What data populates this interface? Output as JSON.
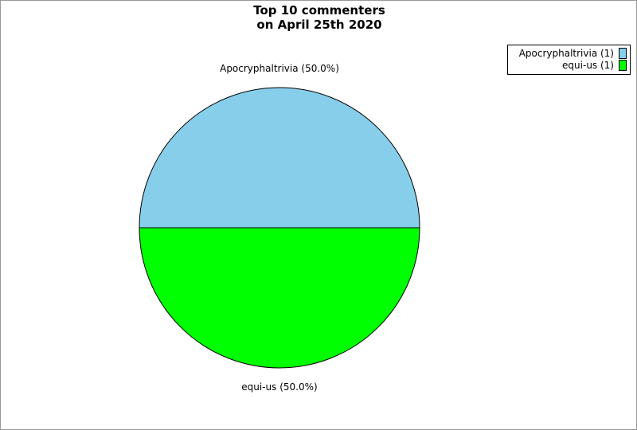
{
  "chart_data": {
    "type": "pie",
    "title_lines": [
      "Top 10 commenters",
      "on April 25th 2020"
    ],
    "slices": [
      {
        "name": "Apocryphaltrivia",
        "value": 1,
        "percent_label": "Apocryphaltrivia (50.0%)",
        "legend_label": "Apocryphaltrivia (1)",
        "color": "#87ceeb"
      },
      {
        "name": "equi-us",
        "value": 1,
        "percent_label": "equi-us (50.0%)",
        "legend_label": "equi-us (1)",
        "color": "#00ff00"
      }
    ],
    "legend_placement": "top-right"
  }
}
